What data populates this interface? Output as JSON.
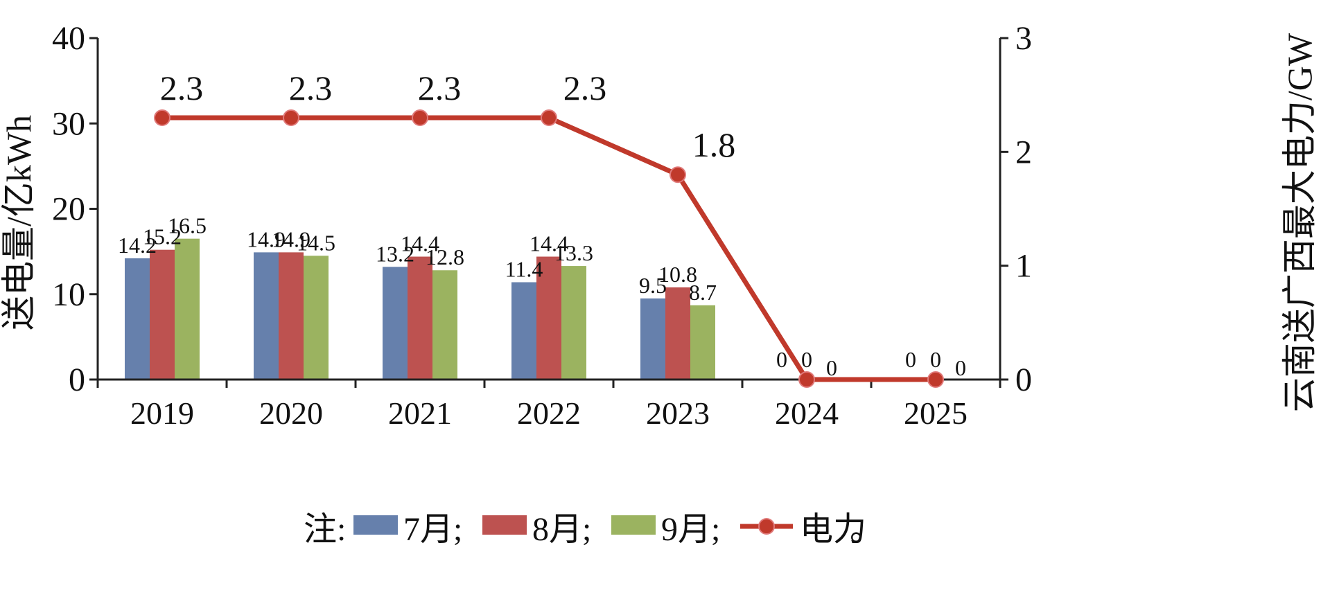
{
  "chart_data": {
    "type": "bar",
    "title": "",
    "categories": [
      "2019",
      "2020",
      "2021",
      "2022",
      "2023",
      "2024",
      "2025"
    ],
    "series": [
      {
        "name": "7月",
        "color": "#6680ac",
        "values": [
          14.2,
          14.9,
          13.2,
          11.4,
          9.5,
          0,
          0
        ]
      },
      {
        "name": "8月",
        "color": "#bd5250",
        "values": [
          15.2,
          14.9,
          14.4,
          14.4,
          10.8,
          0,
          0
        ]
      },
      {
        "name": "9月",
        "color": "#9bb360",
        "values": [
          16.5,
          14.5,
          12.8,
          13.3,
          8.7,
          0,
          0
        ]
      }
    ],
    "line_series": {
      "name": "电力",
      "color": "#c0392b",
      "axis": "right",
      "values": [
        2.3,
        2.3,
        2.3,
        2.3,
        1.8,
        0,
        0
      ]
    },
    "ylabel": "送电量/亿kWh",
    "ylabel_right": "云南送广西最大电力/GW",
    "ylim": [
      0,
      40
    ],
    "ylim_right": [
      0,
      3
    ],
    "yticks": [
      0,
      10,
      20,
      30,
      40
    ],
    "yticks_right": [
      0,
      1,
      2,
      3
    ],
    "legend": {
      "prefix": "注:",
      "separator": ";",
      "terminator": "。",
      "placement": "bottom"
    }
  }
}
